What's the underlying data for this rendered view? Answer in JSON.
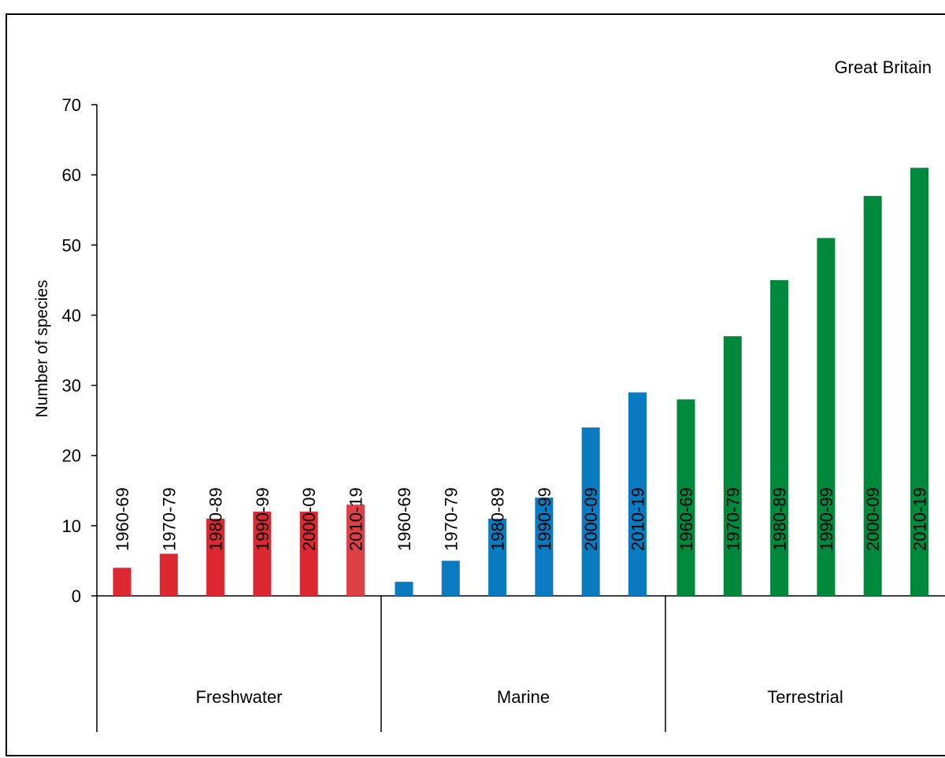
{
  "chart_data": {
    "type": "bar",
    "title": "",
    "annotation": "Great Britain",
    "ylabel": "Number of species",
    "xlabel": "",
    "ylim": [
      0,
      70
    ],
    "yticks": [
      0,
      10,
      20,
      30,
      40,
      50,
      60,
      70
    ],
    "grid": false,
    "groups": [
      {
        "name": "Freshwater",
        "color": "#dc2830",
        "categories": [
          "1960-69",
          "1970-79",
          "1980-89",
          "1990-99",
          "2000-09",
          "2010-19"
        ],
        "values": [
          4,
          6,
          11,
          12,
          12,
          13
        ],
        "bar_colors": [
          "#dc2830",
          "#dc2830",
          "#dc2830",
          "#dc2830",
          "#dc2830",
          "#de4048"
        ]
      },
      {
        "name": "Marine",
        "color": "#0a7bc0",
        "categories": [
          "1960-69",
          "1970-79",
          "1980-89",
          "1990-99",
          "2000-09",
          "2010-19"
        ],
        "values": [
          2,
          5,
          11,
          14,
          24,
          29
        ],
        "bar_colors": [
          "#0a7bc0",
          "#0a7bc0",
          "#0a7bc0",
          "#0a7bc0",
          "#0a7bc0",
          "#0a7bc0"
        ]
      },
      {
        "name": "Terrestrial",
        "color": "#00893d",
        "categories": [
          "1960-69",
          "1970-79",
          "1980-89",
          "1990-99",
          "2000-09",
          "2010-19"
        ],
        "values": [
          28,
          37,
          45,
          51,
          57,
          61
        ],
        "bar_colors": [
          "#00893d",
          "#00893d",
          "#00893d",
          "#00893d",
          "#00893d",
          "#00893d"
        ]
      }
    ]
  }
}
